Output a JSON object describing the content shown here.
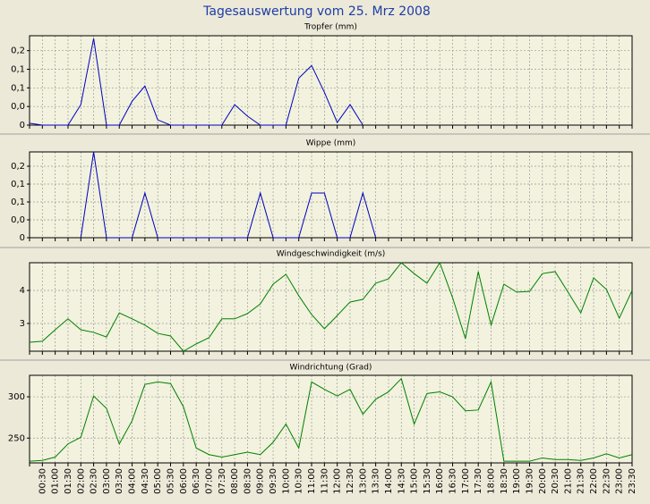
{
  "title": "Tagesauswertung vom 25. Mrz 2008",
  "chart_data": [
    {
      "type": "line",
      "title": "Tropfer (mm)",
      "color": "#0000c0",
      "grid": true,
      "ylim": [
        0,
        0.24
      ],
      "yticks": [
        {
          "value": 0.2,
          "label": "0,2"
        },
        {
          "value": 0.15,
          "label": "0,1"
        },
        {
          "value": 0.1,
          "label": "0,1"
        },
        {
          "value": 0.05,
          "label": "0,0"
        },
        0
      ],
      "values": [
        0.005,
        0,
        0,
        0,
        0.055,
        0.233,
        0,
        0,
        0.064,
        0.105,
        0.014,
        0,
        0,
        0,
        0,
        0,
        0.055,
        0.024,
        0,
        0,
        0,
        0.126,
        0.16,
        0.088,
        0.007,
        0.055,
        0,
        null,
        null,
        null,
        null,
        null,
        null,
        null,
        null,
        null,
        null,
        null,
        null,
        null,
        null,
        null,
        null,
        null,
        null,
        null,
        null,
        null
      ]
    },
    {
      "type": "line",
      "title": "Wippe (mm)",
      "color": "#0000c0",
      "grid": true,
      "ylim": [
        0,
        0.24
      ],
      "yticks": [
        {
          "value": 0.2,
          "label": "0,2"
        },
        {
          "value": 0.15,
          "label": "0,1"
        },
        {
          "value": 0.1,
          "label": "0,1"
        },
        {
          "value": 0.05,
          "label": "0,0"
        },
        0
      ],
      "values": [
        null,
        null,
        null,
        null,
        0,
        0.24,
        0,
        0,
        0,
        0.125,
        0,
        0,
        0,
        0,
        0,
        0,
        0,
        0,
        0.125,
        0,
        0,
        0,
        0.125,
        0.125,
        0,
        0,
        0.125,
        0,
        null,
        null,
        null,
        null,
        null,
        null,
        null,
        null,
        null,
        null,
        null,
        null,
        null,
        null,
        null,
        null,
        null,
        null,
        null,
        null
      ]
    },
    {
      "type": "line",
      "title": "Windgeschwindigkeit (m/s)",
      "color": "#008000",
      "grid": true,
      "ylim": [
        2.16,
        4.84
      ],
      "yticks": [
        4,
        3
      ],
      "values": [
        2.43,
        2.46,
        2.81,
        3.14,
        2.81,
        2.73,
        2.59,
        3.32,
        3.14,
        2.95,
        2.7,
        2.62,
        2.16,
        2.38,
        2.57,
        3.14,
        3.14,
        3.3,
        3.59,
        4.19,
        4.49,
        3.84,
        3.27,
        2.84,
        3.24,
        3.65,
        3.73,
        4.22,
        4.35,
        4.84,
        4.51,
        4.22,
        4.84,
        3.78,
        2.54,
        4.57,
        2.95,
        4.19,
        3.95,
        3.97,
        4.51,
        4.57,
        3.95,
        3.32,
        4.38,
        4.03,
        3.16,
        4.0
      ]
    },
    {
      "type": "line",
      "title": "Windrichtung (Grad)",
      "color": "#008000",
      "grid": true,
      "ylim": [
        220,
        326
      ],
      "yticks": [
        300,
        250
      ],
      "categories": [
        null,
        "00:30",
        "01:00",
        "01:30",
        "02:00",
        "02:30",
        "03:00",
        "03:30",
        "04:00",
        "04:30",
        "05:00",
        "05:30",
        "06:00",
        "06:30",
        "07:00",
        "07:30",
        "08:00",
        "08:30",
        "09:00",
        "09:30",
        "10:00",
        "10:30",
        "11:00",
        "11:30",
        "12:00",
        "12:30",
        "13:00",
        "13:30",
        "14:00",
        "14:30",
        "15:00",
        "15:30",
        "16:00",
        "16:30",
        "17:00",
        "17:30",
        "18:00",
        "18:30",
        "19:00",
        "19:30",
        "20:00",
        "20:30",
        "21:00",
        "21:30",
        "22:00",
        "22:30",
        "23:00",
        "23:30"
      ],
      "values": [
        222,
        223,
        227,
        243,
        251,
        301,
        286,
        243,
        271,
        315,
        318,
        316,
        288,
        238,
        230,
        227,
        230,
        233,
        230,
        245,
        267,
        238,
        318,
        309,
        301,
        309,
        279,
        297,
        306,
        322,
        267,
        304,
        306,
        300,
        283,
        284,
        318,
        222,
        222,
        222,
        226,
        224,
        224,
        223,
        226,
        231,
        226,
        230
      ]
    }
  ]
}
